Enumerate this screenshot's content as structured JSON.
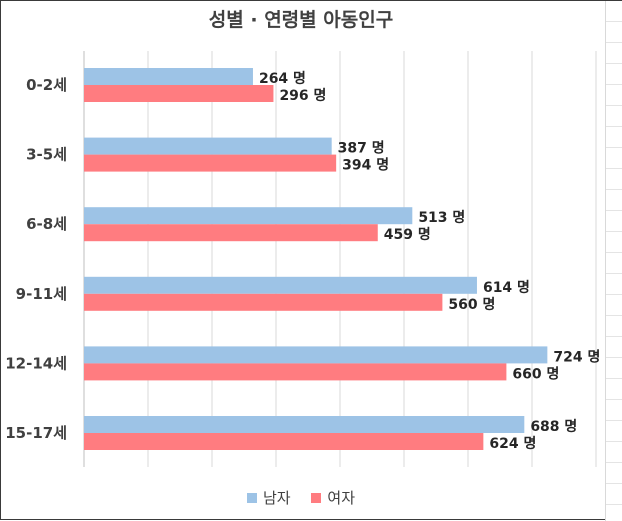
{
  "chart_data": {
    "type": "bar",
    "orientation": "horizontal",
    "title": "성별 · 연령별 아동인구",
    "categories": [
      "0-2세",
      "3-5세",
      "6-8세",
      "9-11세",
      "12-14세",
      "15-17세"
    ],
    "series": [
      {
        "name": "남자",
        "color": "#9dc3e6",
        "values": [
          264,
          387,
          513,
          614,
          724,
          688
        ]
      },
      {
        "name": "여자",
        "color": "#ff7c80",
        "values": [
          296,
          394,
          459,
          560,
          660,
          624
        ]
      }
    ],
    "value_label_suffix": " 명",
    "xlim": [
      0,
      800
    ],
    "grid": true,
    "legend_position": "bottom"
  }
}
